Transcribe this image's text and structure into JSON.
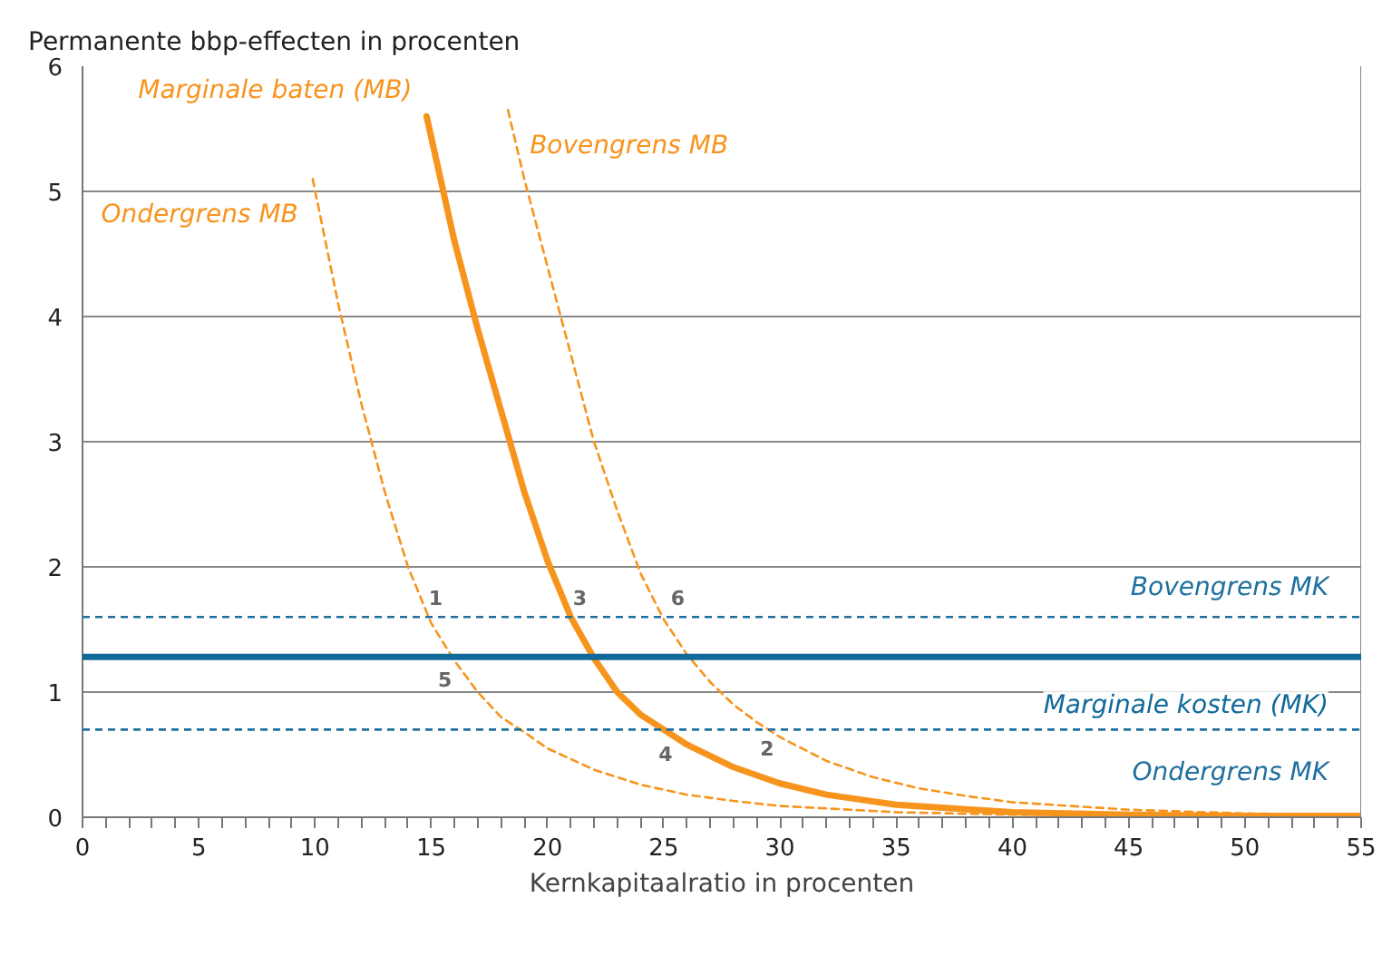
{
  "chart_data": {
    "type": "line",
    "ylabel": "Permanente bbp-effecten in procenten",
    "xlabel": "Kernkapitaalratio in procenten",
    "xlim": [
      0,
      55
    ],
    "ylim": [
      0,
      6
    ],
    "xticks": [
      0,
      {
        "value": 1,
        "label": null
      },
      {
        "value": 2,
        "label": null
      },
      {
        "value": 3,
        "label": null
      },
      {
        "value": 4,
        "label": null
      },
      5,
      {
        "value": 6,
        "label": null
      },
      {
        "value": 7,
        "label": null
      },
      {
        "value": 8,
        "label": null
      },
      {
        "value": 9,
        "label": null
      },
      10,
      {
        "value": 11,
        "label": null
      },
      {
        "value": 12,
        "label": null
      },
      {
        "value": 13,
        "label": null
      },
      {
        "value": 14,
        "label": null
      },
      15,
      {
        "value": 16,
        "label": null
      },
      {
        "value": 17,
        "label": null
      },
      {
        "value": 18,
        "label": null
      },
      {
        "value": 19,
        "label": null
      },
      20,
      {
        "value": 21,
        "label": null
      },
      {
        "value": 22,
        "label": null
      },
      {
        "value": 23,
        "label": null
      },
      {
        "value": 24,
        "label": null
      },
      25,
      {
        "value": 26,
        "label": null
      },
      {
        "value": 27,
        "label": null
      },
      {
        "value": 28,
        "label": null
      },
      {
        "value": 29,
        "label": null
      },
      30,
      {
        "value": 31,
        "label": null
      },
      {
        "value": 32,
        "label": null
      },
      {
        "value": 33,
        "label": null
      },
      {
        "value": 34,
        "label": null
      },
      35,
      {
        "value": 36,
        "label": null
      },
      {
        "value": 37,
        "label": null
      },
      {
        "value": 38,
        "label": null
      },
      {
        "value": 39,
        "label": null
      },
      40,
      {
        "value": 41,
        "label": null
      },
      {
        "value": 42,
        "label": null
      },
      {
        "value": 43,
        "label": null
      },
      {
        "value": 44,
        "label": null
      },
      45,
      {
        "value": 46,
        "label": null
      },
      {
        "value": 47,
        "label": null
      },
      {
        "value": 48,
        "label": null
      },
      {
        "value": 49,
        "label": null
      },
      50,
      {
        "value": 51,
        "label": null
      },
      {
        "value": 52,
        "label": null
      },
      {
        "value": 53,
        "label": null
      },
      {
        "value": 54,
        "label": null
      },
      55
    ],
    "yticks": [
      0,
      1,
      2,
      3,
      4,
      5,
      6
    ],
    "grid": "y",
    "series": [
      {
        "name": "Ondergrens MB",
        "color": "#f7941d",
        "line_style": "dashed",
        "x": [
          9.9,
          11,
          12,
          13,
          14,
          15,
          16,
          17,
          18,
          19,
          20,
          22,
          24,
          26,
          28,
          30,
          35,
          40,
          50,
          55
        ],
        "values": [
          5.1,
          4.1,
          3.3,
          2.6,
          2.0,
          1.55,
          1.25,
          1.0,
          0.8,
          0.68,
          0.55,
          0.38,
          0.26,
          0.18,
          0.13,
          0.09,
          0.04,
          0.02,
          0.01,
          0.0
        ]
      },
      {
        "name": "Marginale baten (MB)",
        "color": "#f7941d",
        "line_style": "solid",
        "x": [
          14.8,
          16,
          17,
          18,
          19,
          20,
          21,
          22,
          23,
          24,
          25,
          26,
          28,
          30,
          32,
          35,
          40,
          45,
          50,
          55
        ],
        "values": [
          5.6,
          4.6,
          3.9,
          3.25,
          2.6,
          2.05,
          1.6,
          1.27,
          1.0,
          0.82,
          0.7,
          0.58,
          0.4,
          0.27,
          0.18,
          0.1,
          0.04,
          0.02,
          0.01,
          0.01
        ]
      },
      {
        "name": "Bovengrens MB",
        "color": "#f7941d",
        "line_style": "dashed",
        "x": [
          18.3,
          19,
          20,
          21,
          22,
          23,
          24,
          25,
          26,
          27,
          28,
          29,
          30,
          32,
          34,
          36,
          38,
          40,
          45,
          50,
          55
        ],
        "values": [
          5.65,
          5.1,
          4.4,
          3.7,
          3.0,
          2.45,
          1.95,
          1.58,
          1.3,
          1.08,
          0.9,
          0.76,
          0.64,
          0.45,
          0.32,
          0.23,
          0.17,
          0.12,
          0.06,
          0.03,
          0.02
        ]
      }
    ],
    "ref_lines": [
      {
        "axis": "y",
        "value": 1.6,
        "label": "Bovengrens MK",
        "color": "#1f6f9f",
        "line_style": "dashed"
      },
      {
        "axis": "y",
        "value": 1.28,
        "label": "Marginale kosten (MK)",
        "color": "#0f6a99",
        "line_style": "solid"
      },
      {
        "axis": "y",
        "value": 0.7,
        "label": "Ondergrens MK",
        "color": "#1f6f9f",
        "line_style": "dashed"
      }
    ],
    "annotations": [
      {
        "text": "1",
        "x": 14.8,
        "y": 1.6
      },
      {
        "text": "2",
        "x": 29.6,
        "y": 0.7
      },
      {
        "text": "3",
        "x": 21.0,
        "y": 1.6
      },
      {
        "text": "4",
        "x": 25.0,
        "y": 0.7
      },
      {
        "text": "5",
        "x": 15.9,
        "y": 1.28
      },
      {
        "text": "6",
        "x": 24.9,
        "y": 1.6
      }
    ]
  }
}
